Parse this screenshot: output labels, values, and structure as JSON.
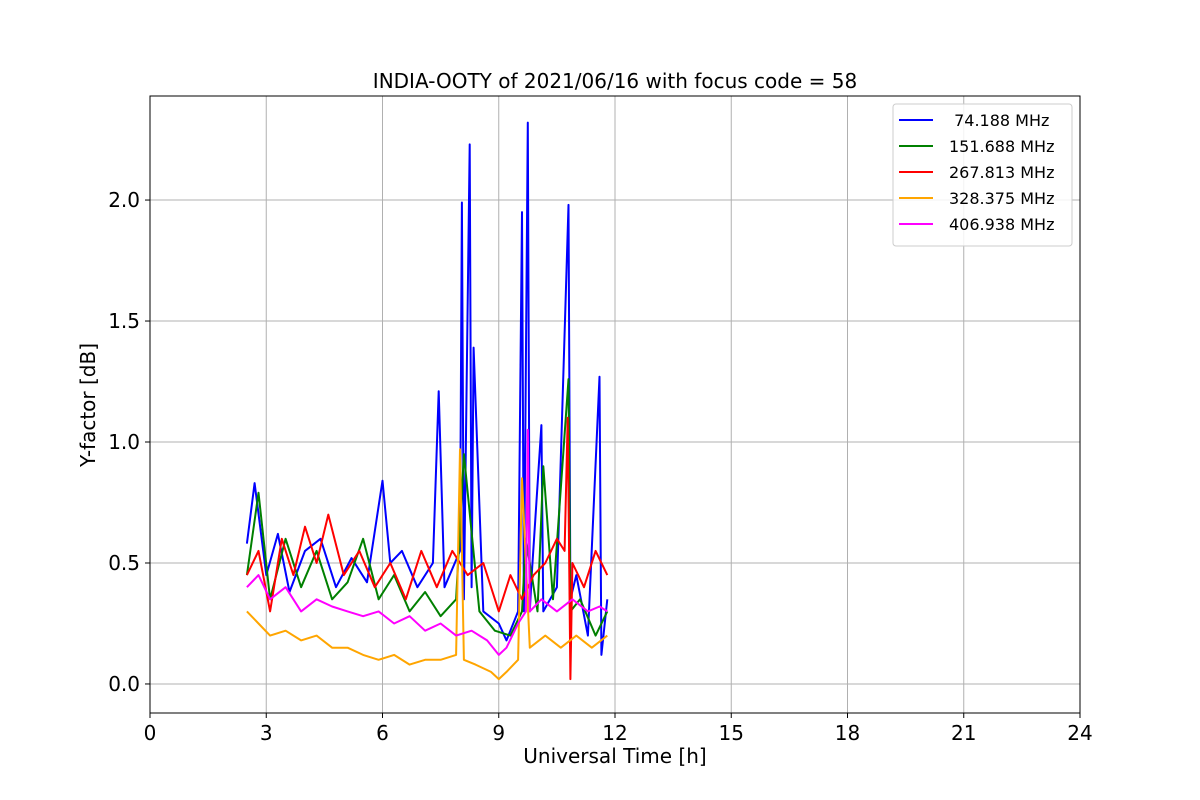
{
  "chart_data": {
    "type": "line",
    "title": "INDIA-OOTY of 2021/06/16 with focus code = 58",
    "xlabel": "Universal Time [h]",
    "ylabel": "Y-factor [dB]",
    "xlim": [
      0,
      24
    ],
    "ylim": [
      -0.12,
      2.43
    ],
    "xticks": [
      0,
      3,
      6,
      9,
      12,
      15,
      18,
      21,
      24
    ],
    "xtick_labels": [
      "0",
      "3",
      "6",
      "9",
      "12",
      "15",
      "18",
      "21",
      "24"
    ],
    "yticks": [
      0.0,
      0.5,
      1.0,
      1.5,
      2.0
    ],
    "ytick_labels": [
      "0.0",
      "0.5",
      "1.0",
      "1.5",
      "2.0"
    ],
    "grid": true,
    "legend_position": "top-right",
    "series": [
      {
        "name": " 74.188 MHz",
        "color": "#0000ff",
        "x": [
          2.5,
          2.7,
          3.0,
          3.3,
          3.6,
          4.0,
          4.4,
          4.8,
          5.2,
          5.6,
          6.0,
          6.2,
          6.5,
          6.9,
          7.3,
          7.45,
          7.6,
          8.0,
          8.05,
          8.1,
          8.25,
          8.3,
          8.35,
          8.6,
          9.0,
          9.2,
          9.5,
          9.6,
          9.65,
          9.75,
          9.8,
          9.85,
          10.1,
          10.15,
          10.5,
          10.8,
          10.85,
          11.0,
          11.3,
          11.6,
          11.65,
          11.8
        ],
        "y": [
          0.58,
          0.83,
          0.45,
          0.62,
          0.38,
          0.55,
          0.6,
          0.4,
          0.52,
          0.42,
          0.84,
          0.5,
          0.55,
          0.4,
          0.5,
          1.21,
          0.4,
          0.55,
          1.99,
          0.35,
          2.23,
          0.4,
          1.39,
          0.3,
          0.25,
          0.18,
          0.3,
          1.95,
          0.3,
          2.32,
          0.3,
          0.45,
          1.07,
          0.3,
          0.4,
          1.98,
          0.35,
          0.45,
          0.2,
          1.27,
          0.12,
          0.35
        ]
      },
      {
        "name": "151.688 MHz",
        "color": "#008000",
        "x": [
          2.5,
          2.8,
          3.1,
          3.5,
          3.9,
          4.3,
          4.7,
          5.1,
          5.5,
          5.9,
          6.3,
          6.7,
          7.1,
          7.5,
          7.9,
          8.1,
          8.5,
          8.9,
          9.3,
          9.6,
          9.7,
          10.0,
          10.15,
          10.4,
          10.8,
          10.85,
          11.1,
          11.5,
          11.8
        ],
        "y": [
          0.45,
          0.79,
          0.35,
          0.6,
          0.4,
          0.55,
          0.35,
          0.42,
          0.6,
          0.35,
          0.45,
          0.3,
          0.38,
          0.28,
          0.35,
          0.95,
          0.3,
          0.22,
          0.2,
          0.3,
          0.6,
          0.3,
          0.9,
          0.35,
          1.26,
          0.3,
          0.35,
          0.2,
          0.3
        ]
      },
      {
        "name": "267.813 MHz",
        "color": "#ff0000",
        "x": [
          2.5,
          2.8,
          3.1,
          3.4,
          3.7,
          4.0,
          4.3,
          4.6,
          5.0,
          5.4,
          5.8,
          6.2,
          6.6,
          7.0,
          7.4,
          7.8,
          8.2,
          8.6,
          9.0,
          9.3,
          9.6,
          9.9,
          10.2,
          10.5,
          10.7,
          10.78,
          10.85,
          10.9,
          11.2,
          11.5,
          11.8
        ],
        "y": [
          0.45,
          0.55,
          0.3,
          0.6,
          0.45,
          0.65,
          0.5,
          0.7,
          0.45,
          0.55,
          0.4,
          0.5,
          0.35,
          0.55,
          0.4,
          0.55,
          0.45,
          0.5,
          0.3,
          0.45,
          0.35,
          0.45,
          0.5,
          0.6,
          0.55,
          1.1,
          0.02,
          0.5,
          0.4,
          0.55,
          0.45
        ]
      },
      {
        "name": "328.375 MHz",
        "color": "#ffa500",
        "x": [
          2.5,
          2.8,
          3.1,
          3.5,
          3.9,
          4.3,
          4.7,
          5.1,
          5.5,
          5.9,
          6.3,
          6.7,
          7.1,
          7.5,
          7.9,
          8.0,
          8.1,
          8.4,
          8.8,
          9.0,
          9.2,
          9.5,
          9.6,
          9.8,
          10.2,
          10.6,
          11.0,
          11.4,
          11.8
        ],
        "y": [
          0.3,
          0.25,
          0.2,
          0.22,
          0.18,
          0.2,
          0.15,
          0.15,
          0.12,
          0.1,
          0.12,
          0.08,
          0.1,
          0.1,
          0.12,
          0.97,
          0.1,
          0.08,
          0.05,
          0.02,
          0.05,
          0.1,
          0.85,
          0.15,
          0.2,
          0.15,
          0.2,
          0.15,
          0.2
        ]
      },
      {
        "name": "406.938 MHz",
        "color": "#ff00ff",
        "x": [
          2.5,
          2.8,
          3.1,
          3.5,
          3.9,
          4.3,
          4.7,
          5.1,
          5.5,
          5.9,
          6.3,
          6.7,
          7.1,
          7.5,
          7.9,
          8.3,
          8.7,
          9.0,
          9.2,
          9.5,
          9.7,
          9.75,
          9.8,
          10.1,
          10.5,
          10.9,
          11.3,
          11.6,
          11.8
        ],
        "y": [
          0.4,
          0.45,
          0.35,
          0.4,
          0.3,
          0.35,
          0.32,
          0.3,
          0.28,
          0.3,
          0.25,
          0.28,
          0.22,
          0.25,
          0.2,
          0.22,
          0.18,
          0.12,
          0.15,
          0.25,
          0.3,
          1.05,
          0.3,
          0.35,
          0.3,
          0.35,
          0.3,
          0.32,
          0.3
        ]
      }
    ]
  }
}
